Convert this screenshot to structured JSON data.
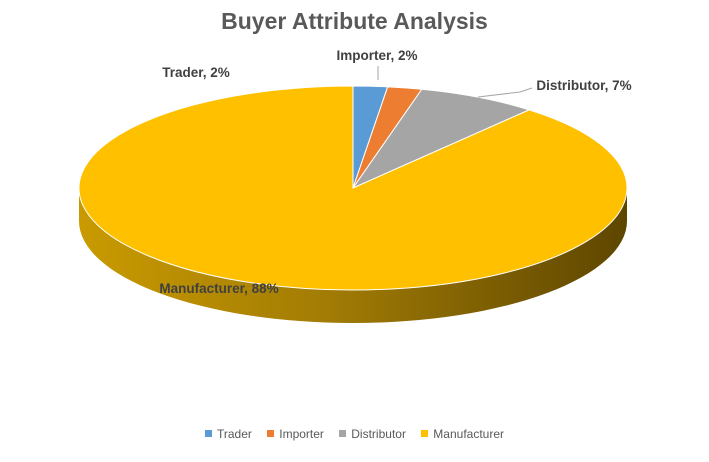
{
  "chart_data": {
    "type": "pie",
    "title": "Buyer Attribute Analysis",
    "categories": [
      "Trader",
      "Importer",
      "Distributor",
      "Manufacturer"
    ],
    "values": [
      2,
      2,
      7,
      88
    ],
    "labels": [
      "Trader, 2%",
      "Importer, 2%",
      "Distributor, 7%",
      "Manufacturer, 88%"
    ],
    "colors": [
      "#5B9BD5",
      "#ED7D31",
      "#A5A5A5",
      "#FFC000"
    ],
    "legend_position": "bottom",
    "style": "3d"
  }
}
